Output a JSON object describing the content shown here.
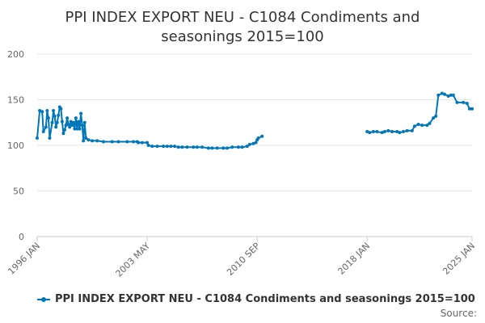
{
  "chart_data": {
    "type": "line",
    "title_lines": [
      "PPI INDEX EXPORT NEU - C1084 Condiments and",
      "seasonings 2015=100"
    ],
    "xlabel": "",
    "ylabel": "",
    "ylim": [
      0,
      200
    ],
    "yticks": [
      "0",
      "50",
      "100",
      "150",
      "200"
    ],
    "xlim": [
      "1996-01",
      "2025-01"
    ],
    "xticks": [
      {
        "date": "1996-01",
        "label": "1996 JAN"
      },
      {
        "date": "2003-05",
        "label": "2003 MAY"
      },
      {
        "date": "2010-09",
        "label": "2010 SEP"
      },
      {
        "date": "2018-01",
        "label": "2018 JAN"
      },
      {
        "date": "2025-01",
        "label": "2025 JAN"
      }
    ],
    "grid": true,
    "legend_position": "bottom-left",
    "series": [
      {
        "name": "PPI INDEX EXPORT NEU - C1084 Condiments and seasonings 2015=100",
        "color": "#0077bb",
        "segments": [
          [
            [
              "1996-01",
              108
            ],
            [
              "1996-03",
              138
            ],
            [
              "1996-05",
              137
            ],
            [
              "1996-06",
              115
            ],
            [
              "1996-08",
              120
            ],
            [
              "1996-09",
              138
            ],
            [
              "1996-10",
              130
            ],
            [
              "1996-11",
              108
            ],
            [
              "1997-01",
              125
            ],
            [
              "1997-02",
              138
            ],
            [
              "1997-03",
              132
            ],
            [
              "1997-04",
              120
            ],
            [
              "1997-05",
              125
            ],
            [
              "1997-06",
              133
            ],
            [
              "1997-07",
              142
            ],
            [
              "1997-08",
              140
            ],
            [
              "1997-09",
              126
            ],
            [
              "1997-10",
              113
            ],
            [
              "1997-11",
              117
            ],
            [
              "1997-12",
              122
            ],
            [
              "1998-01",
              130
            ],
            [
              "1998-02",
              123
            ],
            [
              "1998-03",
              120
            ],
            [
              "1998-04",
              126
            ],
            [
              "1998-05",
              122
            ],
            [
              "1998-06",
              125
            ],
            [
              "1998-07",
              118
            ],
            [
              "1998-08",
              130
            ],
            [
              "1998-09",
              118
            ],
            [
              "1998-10",
              126
            ],
            [
              "1998-11",
              118
            ],
            [
              "1998-12",
              135
            ],
            [
              "1999-01",
              122
            ],
            [
              "1999-02",
              105
            ],
            [
              "1999-03",
              125
            ],
            [
              "1999-04",
              108
            ],
            [
              "1999-06",
              106
            ],
            [
              "1999-09",
              105
            ],
            [
              "2000-01",
              105
            ],
            [
              "2000-06",
              104
            ],
            [
              "2001-01",
              104
            ],
            [
              "2001-06",
              104
            ],
            [
              "2002-01",
              104
            ],
            [
              "2002-06",
              104
            ],
            [
              "2002-09",
              104
            ],
            [
              "2002-10",
              103
            ],
            [
              "2003-01",
              103
            ],
            [
              "2003-05",
              103
            ],
            [
              "2003-06",
              100
            ],
            [
              "2003-09",
              99
            ],
            [
              "2004-01",
              99
            ],
            [
              "2004-06",
              99
            ],
            [
              "2004-09",
              99
            ],
            [
              "2004-12",
              99
            ],
            [
              "2005-03",
              99
            ],
            [
              "2005-06",
              98
            ],
            [
              "2005-09",
              98
            ],
            [
              "2006-01",
              98
            ],
            [
              "2006-06",
              98
            ],
            [
              "2006-09",
              98
            ],
            [
              "2007-01",
              98
            ],
            [
              "2007-06",
              97
            ],
            [
              "2007-09",
              97
            ],
            [
              "2008-01",
              97
            ],
            [
              "2008-06",
              97
            ],
            [
              "2008-09",
              97
            ],
            [
              "2009-01",
              98
            ],
            [
              "2009-06",
              98
            ],
            [
              "2009-09",
              98
            ],
            [
              "2010-01",
              99
            ],
            [
              "2010-03",
              101
            ],
            [
              "2010-06",
              102
            ],
            [
              "2010-08",
              103
            ],
            [
              "2010-09",
              106
            ],
            [
              "2010-10",
              108
            ],
            [
              "2011-01",
              110
            ]
          ],
          [
            [
              "2018-01",
              115
            ],
            [
              "2018-03",
              114
            ],
            [
              "2018-06",
              115
            ],
            [
              "2018-09",
              115
            ],
            [
              "2019-01",
              114
            ],
            [
              "2019-03",
              115
            ],
            [
              "2019-06",
              116
            ],
            [
              "2019-09",
              115
            ],
            [
              "2020-01",
              115
            ],
            [
              "2020-03",
              114
            ],
            [
              "2020-06",
              115
            ],
            [
              "2020-09",
              116
            ],
            [
              "2021-01",
              116
            ],
            [
              "2021-03",
              121
            ],
            [
              "2021-06",
              123
            ],
            [
              "2021-09",
              122
            ],
            [
              "2022-01",
              122
            ],
            [
              "2022-03",
              124
            ],
            [
              "2022-06",
              130
            ],
            [
              "2022-08",
              132
            ],
            [
              "2022-10",
              155
            ],
            [
              "2023-01",
              157
            ],
            [
              "2023-03",
              156
            ],
            [
              "2023-06",
              154
            ],
            [
              "2023-08",
              155
            ],
            [
              "2023-10",
              155
            ],
            [
              "2024-01",
              147
            ],
            [
              "2024-06",
              147
            ],
            [
              "2024-09",
              146
            ],
            [
              "2024-11",
              140
            ],
            [
              "2025-01",
              140
            ]
          ]
        ]
      }
    ]
  },
  "legend": {
    "label": "PPI INDEX EXPORT NEU - C1084 Condiments and seasonings 2015=100"
  },
  "source": {
    "label": "Source:"
  }
}
